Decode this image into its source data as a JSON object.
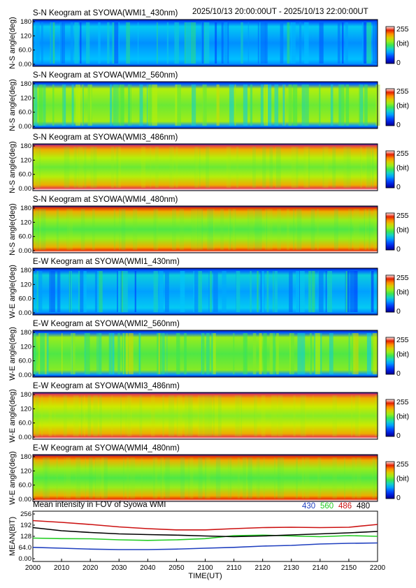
{
  "header": {
    "time_range": "2025/10/13 20:00:00UT - 2025/10/13 22:00:00UT"
  },
  "colors": {
    "series_430": "#1f3fbf",
    "series_560": "#22cc22",
    "series_486": "#cc1111",
    "series_480": "#000000"
  },
  "colorbar": {
    "max_label": "255",
    "unit_label": "(bit)",
    "min_label": "0"
  },
  "keograms": [
    {
      "title": "S-N Keogram at SYOWA(WMI1_430nm)",
      "ylabel": "N-S angle(deg)",
      "yticks": [
        "180",
        "120",
        "60.0",
        "0.00"
      ],
      "base_level": 0.28,
      "style": "aurora-blue"
    },
    {
      "title": "S-N Keogram at SYOWA(WMI2_560nm)",
      "ylabel": "N-S angle(deg)",
      "yticks": [
        "180",
        "120",
        "60.0",
        "0.00"
      ],
      "base_level": 0.55,
      "style": "aurora-green"
    },
    {
      "title": "S-N Keogram at SYOWA(WMI3_486nm)",
      "ylabel": "N-S angle(deg)",
      "yticks": [
        "180",
        "120",
        "60.0",
        "0.00"
      ],
      "base_level": 0.55,
      "style": "airglow-red"
    },
    {
      "title": "S-N Keogram at SYOWA(WMI4_480nm)",
      "ylabel": "N-S angle(deg)",
      "yticks": [
        "180",
        "120",
        "60.0",
        "0.00"
      ],
      "base_level": 0.52,
      "style": "airglow"
    },
    {
      "title": "E-W Keogram at SYOWA(WMI1_430nm)",
      "ylabel": "W-E angle(deg)",
      "yticks": [
        "180",
        "120",
        "60.0",
        "0.00"
      ],
      "base_level": 0.3,
      "style": "aurora-blue"
    },
    {
      "title": "E-W Keogram at SYOWA(WMI2_560nm)",
      "ylabel": "W-E angle(deg)",
      "yticks": [
        "180",
        "120",
        "60.0",
        "0.00"
      ],
      "base_level": 0.52,
      "style": "aurora-green"
    },
    {
      "title": "E-W Keogram at SYOWA(WMI3_486nm)",
      "ylabel": "W-E angle(deg)",
      "yticks": [
        "180",
        "120",
        "60.0",
        "0.00"
      ],
      "base_level": 0.58,
      "style": "airglow-red"
    },
    {
      "title": "E-W Keogram at SYOWA(WMI4_480nm)",
      "ylabel": "W-E angle(deg)",
      "yticks": [
        "180",
        "120",
        "60.0",
        "0.00"
      ],
      "base_level": 0.52,
      "style": "airglow"
    }
  ],
  "chart_data": {
    "type": "line",
    "title": "Mean intensity in FOV of Syowa WMI",
    "xlabel": "TIME(UT)",
    "ylabel": "MEAN(BIT)",
    "x_ticks": [
      "2000",
      "2010",
      "2020",
      "2030",
      "2040",
      "2050",
      "2100",
      "2110",
      "2120",
      "2130",
      "2140",
      "2150",
      "2200"
    ],
    "y_ticks": [
      "256",
      "192",
      "128",
      "64.0",
      "0.00"
    ],
    "ylim": [
      0,
      256
    ],
    "x": [
      0,
      10,
      20,
      30,
      40,
      50,
      60,
      70,
      80,
      90,
      100,
      110,
      120
    ],
    "series": [
      {
        "name": "430",
        "color": "#1f3fbf",
        "values": [
          65,
          60,
          55,
          52,
          52,
          55,
          60,
          65,
          72,
          76,
          84,
          88,
          90
        ]
      },
      {
        "name": "560",
        "color": "#22cc22",
        "values": [
          118,
          115,
          114,
          108,
          105,
          108,
          115,
          132,
          135,
          130,
          126,
          132,
          128
        ]
      },
      {
        "name": "486",
        "color": "#cc1111",
        "values": [
          218,
          208,
          196,
          182,
          172,
          165,
          165,
          172,
          178,
          180,
          178,
          180,
          196
        ]
      },
      {
        "name": "480",
        "color": "#000000",
        "values": [
          178,
          160,
          150,
          142,
          138,
          135,
          130,
          126,
          130,
          136,
          142,
          148,
          156
        ]
      }
    ]
  }
}
